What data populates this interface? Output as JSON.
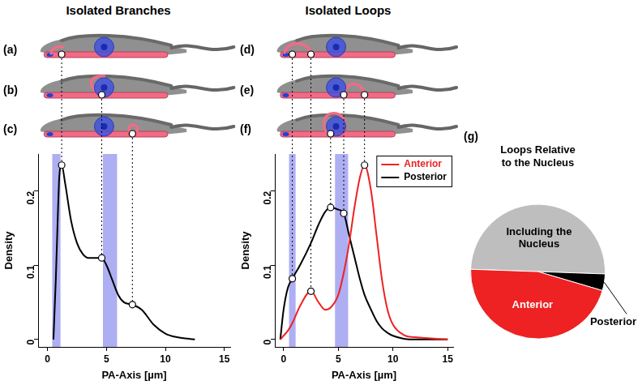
{
  "chart_data": [
    {
      "type": "line",
      "title": "Isolated Branches",
      "annotations": [
        "(a)",
        "(b)",
        "(c)"
      ],
      "x_label": "PA-Axis [µm]",
      "y_label": "Density",
      "color": "#000000",
      "x": [
        0.5,
        0.7,
        0.9,
        1.0,
        1.2,
        1.5,
        2,
        2.5,
        3,
        3.5,
        4,
        4.6,
        5,
        5.5,
        6,
        6.5,
        7.2,
        8,
        9,
        10,
        11,
        12,
        12.5
      ],
      "values": [
        0.0,
        0.08,
        0.18,
        0.22,
        0.235,
        0.21,
        0.16,
        0.13,
        0.115,
        0.11,
        0.11,
        0.11,
        0.1,
        0.08,
        0.06,
        0.05,
        0.047,
        0.04,
        0.02,
        0.008,
        0.003,
        0.001,
        0.0
      ],
      "xlim": [
        -0.8,
        15.5
      ],
      "xticks": [
        0,
        5,
        10,
        15
      ],
      "ylim": [
        -0.01,
        0.25
      ],
      "yticks": [
        0,
        0.1,
        0.2
      ],
      "bands": [
        [
          0.4,
          1.1
        ],
        [
          4.7,
          5.9
        ]
      ],
      "highlights": [
        {
          "x": 1.2,
          "y": 0.235
        },
        {
          "x": 4.6,
          "y": 0.11
        },
        {
          "x": 7.2,
          "y": 0.047
        }
      ],
      "grid": false
    },
    {
      "type": "line",
      "title": "Isolated Loops",
      "annotations": [
        "(d)",
        "(e)",
        "(f)"
      ],
      "x_label": "PA-Axis [µm]",
      "y_label": "Density",
      "x": [
        -0.3,
        0,
        0.4,
        0.8,
        1.5,
        2.5,
        3.2,
        3.8,
        4.3,
        5,
        5.5,
        6,
        6.5,
        7,
        7.4,
        8,
        8.5,
        9,
        9.5,
        10,
        11,
        12,
        13,
        14,
        15
      ],
      "series": [
        {
          "name": "Anterior",
          "color": "#ee2222",
          "values": [
            0.0,
            0.005,
            0.012,
            0.022,
            0.045,
            0.065,
            0.05,
            0.04,
            0.043,
            0.06,
            0.09,
            0.13,
            0.18,
            0.22,
            0.235,
            0.2,
            0.14,
            0.08,
            0.04,
            0.02,
            0.006,
            0.003,
            0.002,
            0.001,
            0.0
          ]
        },
        {
          "name": "Posterior",
          "color": "#000000",
          "values": [
            0.0,
            0.04,
            0.07,
            0.082,
            0.1,
            0.13,
            0.155,
            0.172,
            0.178,
            0.175,
            0.17,
            0.14,
            0.11,
            0.08,
            0.06,
            0.04,
            0.025,
            0.015,
            0.009,
            0.005,
            0.001,
            0.0,
            0.0,
            0.0,
            0.0
          ]
        }
      ],
      "xlim": [
        -0.8,
        15.5
      ],
      "xticks": [
        0,
        5,
        10,
        15
      ],
      "ylim": [
        -0.01,
        0.25
      ],
      "yticks": [
        0,
        0.1,
        0.2
      ],
      "bands": [
        [
          0.5,
          1.1
        ],
        [
          4.7,
          5.9
        ]
      ],
      "highlights": [
        {
          "x": 0.8,
          "y": 0.082
        },
        {
          "x": 2.5,
          "y": 0.065
        },
        {
          "x": 4.3,
          "y": 0.178
        },
        {
          "x": 5.5,
          "y": 0.17
        },
        {
          "x": 7.4,
          "y": 0.235
        }
      ],
      "legend": "upper right",
      "grid": false
    },
    {
      "type": "pie",
      "title": "Loops Relative to the Nucleus",
      "annotations": [
        "(g)"
      ],
      "categories": [
        "Including the Nucleus",
        "Posterior",
        "Anterior"
      ],
      "values": [
        50,
        4,
        46
      ],
      "colors": [
        "#bebebe",
        "#000000",
        "#ee2222"
      ]
    }
  ]
}
